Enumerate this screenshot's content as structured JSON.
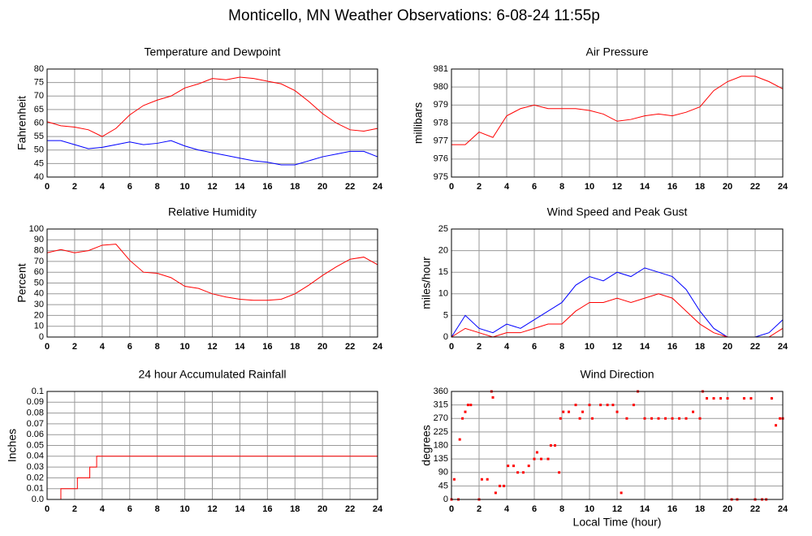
{
  "title": "Monticello, MN Weather Observations: 6-08-24 11:55p",
  "chart_data": [
    {
      "type": "line",
      "title": "Temperature and Dewpoint",
      "ylabel": "Fahrenheit",
      "x": [
        0,
        1,
        2,
        3,
        4,
        5,
        6,
        7,
        8,
        9,
        10,
        11,
        12,
        13,
        14,
        15,
        16,
        17,
        18,
        19,
        20,
        21,
        22,
        23,
        24
      ],
      "series": [
        {
          "color": "#ff0000",
          "values": [
            60.5,
            59,
            58.5,
            57.5,
            55,
            58,
            63,
            66.5,
            68.5,
            70,
            73,
            74.5,
            76.5,
            76,
            77,
            76.5,
            75.5,
            74.5,
            72,
            68,
            63.5,
            60,
            57.5,
            57,
            58
          ]
        },
        {
          "color": "#0000ff",
          "values": [
            53.5,
            53.5,
            52,
            50.5,
            51,
            52,
            53,
            52,
            52.5,
            53.5,
            51.5,
            50,
            49,
            48,
            47,
            46,
            45.5,
            44.5,
            44.5,
            46,
            47.5,
            48.5,
            49.5,
            49.5,
            47.5
          ]
        }
      ],
      "xlim": [
        0,
        24
      ],
      "xticks": [
        0,
        2,
        4,
        6,
        8,
        10,
        12,
        14,
        16,
        18,
        20,
        22,
        24
      ],
      "ylim": [
        40,
        80
      ],
      "yticks": [
        40,
        45,
        50,
        55,
        60,
        65,
        70,
        75,
        80
      ],
      "grid": true
    },
    {
      "type": "line",
      "title": "Air Pressure",
      "ylabel": "millibars",
      "x": [
        0,
        1,
        2,
        3,
        4,
        5,
        6,
        7,
        8,
        9,
        10,
        11,
        12,
        13,
        14,
        15,
        16,
        17,
        18,
        19,
        20,
        21,
        22,
        23,
        24
      ],
      "series": [
        {
          "color": "#ff0000",
          "values": [
            976.8,
            976.8,
            977.5,
            977.2,
            978.4,
            978.8,
            979,
            978.8,
            978.8,
            978.8,
            978.7,
            978.5,
            978.1,
            978.2,
            978.4,
            978.5,
            978.4,
            978.6,
            978.9,
            979.8,
            980.3,
            980.6,
            980.6,
            980.3,
            979.9
          ]
        }
      ],
      "xlim": [
        0,
        24
      ],
      "xticks": [
        0,
        2,
        4,
        6,
        8,
        10,
        12,
        14,
        16,
        18,
        20,
        22,
        24
      ],
      "ylim": [
        975,
        981
      ],
      "yticks": [
        975,
        976,
        977,
        978,
        979,
        980,
        981
      ],
      "grid": true
    },
    {
      "type": "line",
      "title": "Relative Humidity",
      "ylabel": "Percent",
      "x": [
        0,
        1,
        2,
        3,
        4,
        5,
        6,
        7,
        8,
        9,
        10,
        11,
        12,
        13,
        14,
        15,
        16,
        17,
        18,
        19,
        20,
        21,
        22,
        23,
        24
      ],
      "series": [
        {
          "color": "#ff0000",
          "values": [
            78,
            81,
            78,
            80,
            85,
            86,
            71,
            60,
            59,
            55,
            47,
            45,
            40,
            37,
            35,
            34,
            34,
            35,
            40,
            48,
            57,
            65,
            72,
            74,
            67
          ]
        }
      ],
      "xlim": [
        0,
        24
      ],
      "xticks": [
        0,
        2,
        4,
        6,
        8,
        10,
        12,
        14,
        16,
        18,
        20,
        22,
        24
      ],
      "ylim": [
        0,
        100
      ],
      "yticks": [
        0,
        10,
        20,
        30,
        40,
        50,
        60,
        70,
        80,
        90,
        100
      ],
      "grid": true
    },
    {
      "type": "line",
      "title": "Wind Speed and Peak Gust",
      "ylabel": "miles/hour",
      "x": [
        0,
        1,
        2,
        3,
        4,
        5,
        6,
        7,
        8,
        9,
        10,
        11,
        12,
        13,
        14,
        15,
        16,
        17,
        18,
        19,
        20,
        21,
        22,
        23,
        24
      ],
      "series": [
        {
          "color": "#0000ff",
          "values": [
            0,
            5,
            2,
            1,
            3,
            2,
            4,
            6,
            8,
            12,
            14,
            13,
            15,
            14,
            16,
            15,
            14,
            11,
            6,
            2,
            0,
            0,
            0,
            1,
            4
          ]
        },
        {
          "color": "#ff0000",
          "values": [
            0,
            2,
            1,
            0,
            1,
            1,
            2,
            3,
            3,
            6,
            8,
            8,
            9,
            8,
            9,
            10,
            9,
            6,
            3,
            1,
            0,
            0,
            0,
            0,
            2
          ]
        }
      ],
      "xlim": [
        0,
        24
      ],
      "xticks": [
        0,
        2,
        4,
        6,
        8,
        10,
        12,
        14,
        16,
        18,
        20,
        22,
        24
      ],
      "ylim": [
        0,
        25
      ],
      "yticks": [
        0,
        5,
        10,
        15,
        20,
        25
      ],
      "grid": true
    },
    {
      "type": "line",
      "title": "24 hour Accumulated Rainfall",
      "ylabel": "Inches",
      "x": [
        0,
        1,
        1,
        2.2,
        2.2,
        3.1,
        3.1,
        3.6,
        3.6,
        24
      ],
      "series": [
        {
          "color": "#ff0000",
          "values": [
            0,
            0,
            0.01,
            0.01,
            0.02,
            0.02,
            0.03,
            0.03,
            0.04,
            0.04
          ]
        }
      ],
      "xlim": [
        0,
        24
      ],
      "xticks": [
        0,
        2,
        4,
        6,
        8,
        10,
        12,
        14,
        16,
        18,
        20,
        22,
        24
      ],
      "ylim": [
        0,
        0.1
      ],
      "yticks": [
        {
          "value": 0,
          "label": "0.0"
        },
        0.01,
        0.02,
        0.03,
        0.04,
        0.05,
        0.06,
        0.07,
        0.08,
        0.09,
        0.1
      ],
      "grid": true
    },
    {
      "type": "scatter",
      "title": "Wind Direction",
      "ylabel": "degrees",
      "xlabel": "Local Time (hour)",
      "x": [
        0,
        0.2,
        0.5,
        0.6,
        0.8,
        1,
        1.2,
        1.4,
        2,
        2.2,
        2.6,
        2.9,
        3,
        3.2,
        3.5,
        3.8,
        4.1,
        4.5,
        4.8,
        5.2,
        5.6,
        6,
        6.2,
        6.5,
        7,
        7.2,
        7.5,
        7.8,
        7.9,
        8.1,
        8.5,
        9,
        9.3,
        9.5,
        10,
        10.2,
        10.8,
        11.3,
        11.7,
        12,
        12.3,
        12.7,
        13.2,
        13.5,
        14,
        14.5,
        15,
        15.5,
        16,
        16.5,
        17,
        17.5,
        18,
        18.2,
        18.5,
        19,
        19.5,
        20,
        20.3,
        20.7,
        21.2,
        21.7,
        22,
        22.5,
        22.8,
        23.2,
        23.5,
        23.8,
        24
      ],
      "series": [
        {
          "color": "#ff0000",
          "values": [
            0,
            67,
            0,
            200,
            270,
            292,
            315,
            315,
            0,
            67,
            67,
            360,
            340,
            22,
            45,
            45,
            112,
            112,
            90,
            90,
            112,
            135,
            157,
            135,
            135,
            180,
            180,
            90,
            270,
            292,
            292,
            315,
            270,
            292,
            315,
            270,
            315,
            315,
            315,
            292,
            22,
            270,
            315,
            360,
            270,
            270,
            270,
            270,
            270,
            270,
            270,
            292,
            270,
            360,
            337,
            337,
            337,
            337,
            0,
            0,
            337,
            337,
            0,
            0,
            0,
            337,
            247,
            270,
            270
          ]
        }
      ],
      "xlim": [
        0,
        24
      ],
      "xticks": [
        0,
        2,
        4,
        6,
        8,
        10,
        12,
        14,
        16,
        18,
        20,
        22,
        24
      ],
      "ylim": [
        0,
        360
      ],
      "yticks": [
        0,
        45,
        90,
        135,
        180,
        225,
        270,
        315,
        360
      ],
      "grid": true
    }
  ]
}
